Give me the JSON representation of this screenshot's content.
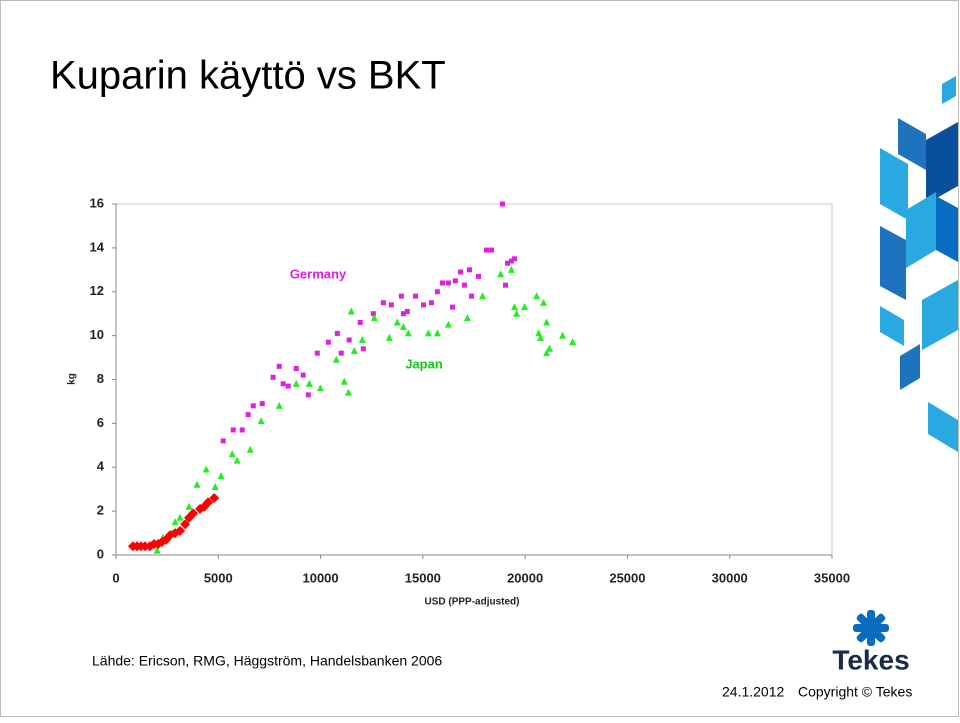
{
  "title": "Kuparin käyttö vs BKT",
  "chart_data": {
    "type": "scatter",
    "x_label": "USD (PPP-adjusted)",
    "y_label": "kg",
    "xlim": [
      0,
      35000
    ],
    "xticks": [
      0,
      5000,
      10000,
      15000,
      20000,
      25000,
      30000,
      35000
    ],
    "ylim": [
      0,
      16
    ],
    "yticks": [
      0,
      2,
      4,
      6,
      8,
      10,
      12,
      14,
      16
    ],
    "grid": false,
    "series": [
      {
        "name": "Germany",
        "color": "#e020e0",
        "marker": "square",
        "x": [
          5240,
          5730,
          6170,
          6460,
          6710,
          7150,
          7680,
          7980,
          8170,
          8420,
          8810,
          9150,
          9400,
          9840,
          10380,
          10820,
          11010,
          11400,
          11940,
          12090,
          12580,
          13070,
          13460,
          13950,
          14050,
          14240,
          14640,
          15030,
          15420,
          15710,
          15960,
          16250,
          16450,
          16590,
          16840,
          17030,
          17280,
          17380,
          17720,
          18110,
          18360,
          18890,
          19040,
          19140,
          19330,
          19480
        ],
        "values": [
          5.2,
          5.7,
          5.7,
          6.4,
          6.8,
          6.9,
          8.1,
          8.6,
          7.8,
          7.7,
          8.5,
          8.2,
          7.3,
          9.2,
          9.7,
          10.1,
          9.2,
          9.8,
          10.6,
          9.4,
          11.0,
          11.5,
          11.4,
          11.8,
          11.0,
          11.1,
          11.8,
          11.4,
          11.5,
          12.0,
          12.4,
          12.4,
          11.3,
          12.5,
          12.9,
          12.3,
          13.0,
          11.8,
          12.7,
          13.9,
          13.9,
          16.0,
          12.3,
          13.3,
          13.4,
          13.5
        ]
      },
      {
        "name": "Japan",
        "color": "#22ee22",
        "marker": "triangle",
        "x": [
          2010,
          2300,
          2740,
          2890,
          3130,
          3570,
          3960,
          4410,
          4850,
          5140,
          5680,
          5920,
          6560,
          7100,
          7980,
          8810,
          9450,
          9990,
          10770,
          11160,
          11360,
          11500,
          11650,
          12040,
          12630,
          13360,
          13750,
          14050,
          14290,
          15270,
          15710,
          16250,
          17180,
          17920,
          18800,
          19330,
          19480,
          19580,
          19970,
          20560,
          20660,
          20750,
          20900,
          21050,
          21050,
          21190,
          21830,
          22320
        ],
        "values": [
          0.2,
          0.8,
          1.0,
          1.5,
          1.7,
          2.2,
          3.2,
          3.9,
          3.1,
          3.6,
          4.6,
          4.3,
          4.8,
          6.1,
          6.8,
          7.8,
          7.8,
          7.6,
          8.9,
          7.9,
          7.4,
          11.1,
          9.3,
          9.8,
          10.8,
          9.9,
          10.6,
          10.4,
          10.1,
          10.1,
          10.1,
          10.5,
          10.8,
          11.8,
          12.8,
          13.0,
          11.3,
          11.0,
          11.3,
          11.8,
          10.1,
          9.9,
          11.5,
          10.6,
          9.2,
          9.4,
          10.0,
          9.7
        ]
      },
      {
        "color": "#ff0000",
        "marker": "diamond",
        "x": [
          830,
          1030,
          1220,
          1420,
          1660,
          1860,
          2060,
          2250,
          2450,
          2640,
          2890,
          3130,
          3380,
          3570,
          3770,
          4110,
          4310,
          4500,
          4800
        ],
        "values": [
          0.4,
          0.4,
          0.4,
          0.4,
          0.4,
          0.5,
          0.5,
          0.6,
          0.7,
          0.9,
          1.0,
          1.1,
          1.4,
          1.7,
          1.9,
          2.1,
          2.2,
          2.4,
          2.6
        ]
      }
    ]
  },
  "source": "Lähde: Ericson, RMG, Häggström, Handelsbanken 2006",
  "logo": "Tekes",
  "footer": {
    "date": "24.1.2012",
    "copyright": "Copyright © Tekes"
  }
}
